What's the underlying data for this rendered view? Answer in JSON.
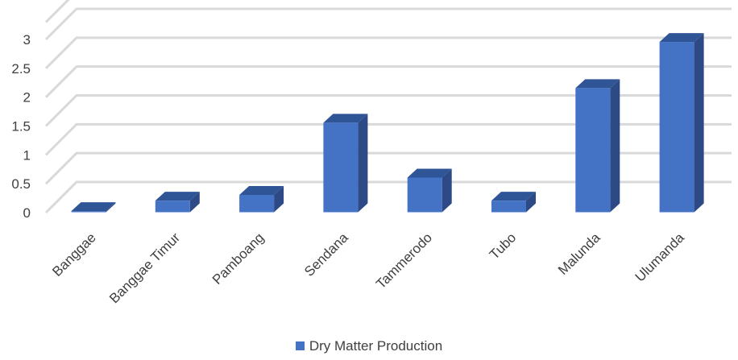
{
  "chart_data": {
    "type": "bar",
    "three_d": true,
    "categories": [
      "Banggae",
      "Banggae Timur",
      "Pamboang",
      "Sendana",
      "Tammerodo",
      "Tubo",
      "Malunda",
      "Ulumanda"
    ],
    "series": [
      {
        "name": "Dry Matter Production",
        "values": [
          0.02,
          0.2,
          0.3,
          1.55,
          0.6,
          0.2,
          2.15,
          2.95
        ]
      }
    ],
    "yticks": [
      "0",
      "0.5",
      "1",
      "1.5",
      "2",
      "2.5",
      "3"
    ],
    "ylim": [
      0,
      3.3
    ],
    "grid": true,
    "legend_position": "bottom",
    "colors": {
      "bar_front": "#4472C4",
      "bar_top": "#2F5597",
      "bar_side": "#2E4A86",
      "grid": "#D9D9D9",
      "text": "#404040"
    }
  }
}
